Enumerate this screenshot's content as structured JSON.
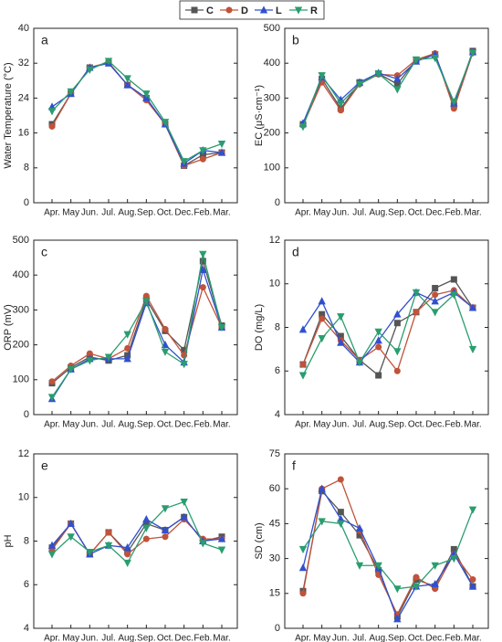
{
  "chart_data": [
    {
      "type": "line",
      "label": "a",
      "y_label": "Water Temperature (°C)",
      "categories": [
        "Apr.",
        "May",
        "Jun.",
        "Jul.",
        "Aug.",
        "Sep.",
        "Oct.",
        "Dec.",
        "Feb.",
        "Mar."
      ],
      "ylim": [
        0,
        40
      ],
      "yticks": [
        0,
        8,
        16,
        24,
        32,
        40
      ],
      "series": [
        {
          "name": "C",
          "color": "#555555",
          "marker": "square",
          "values": [
            18,
            25,
            31,
            32,
            27,
            24,
            18,
            8.5,
            11,
            11.5
          ]
        },
        {
          "name": "D",
          "color": "#c0533a",
          "marker": "circle",
          "values": [
            17.5,
            25,
            31,
            32.2,
            27,
            23.5,
            18,
            8.5,
            10,
            11.5
          ]
        },
        {
          "name": "L",
          "color": "#3050d0",
          "marker": "triangle-up",
          "values": [
            22,
            25,
            31,
            32,
            27,
            24,
            18,
            9,
            12,
            11.5
          ]
        },
        {
          "name": "R",
          "color": "#2a9d6f",
          "marker": "triangle-down",
          "values": [
            21,
            25.5,
            30.5,
            32.5,
            28.5,
            25,
            18.5,
            9.5,
            12,
            13.5
          ]
        }
      ]
    },
    {
      "type": "line",
      "label": "b",
      "y_label": "EC (μS·cm⁻¹)",
      "categories": [
        "Apr.",
        "May",
        "Jun.",
        "Jul.",
        "Aug.",
        "Sep.",
        "Oct.",
        "Dec.",
        "Feb.",
        "Mar."
      ],
      "ylim": [
        0,
        500
      ],
      "yticks": [
        0,
        100,
        200,
        300,
        400,
        500
      ],
      "series": [
        {
          "name": "C",
          "color": "#555555",
          "marker": "square",
          "values": [
            225,
            355,
            270,
            345,
            370,
            340,
            410,
            425,
            280,
            435
          ]
        },
        {
          "name": "D",
          "color": "#c0533a",
          "marker": "circle",
          "values": [
            222,
            345,
            265,
            340,
            368,
            365,
            410,
            428,
            270,
            430
          ]
        },
        {
          "name": "L",
          "color": "#3050d0",
          "marker": "triangle-up",
          "values": [
            228,
            360,
            295,
            345,
            372,
            355,
            405,
            425,
            285,
            432
          ]
        },
        {
          "name": "R",
          "color": "#2a9d6f",
          "marker": "triangle-down",
          "values": [
            218,
            365,
            285,
            340,
            370,
            325,
            410,
            415,
            290,
            430
          ]
        }
      ]
    },
    {
      "type": "line",
      "label": "c",
      "y_label": "ORP (mV)",
      "categories": [
        "Apr.",
        "May",
        "Jun.",
        "Jul.",
        "Aug.",
        "Sep.",
        "Oct.",
        "Dec.",
        "Feb.",
        "Mar."
      ],
      "ylim": [
        0,
        500
      ],
      "yticks": [
        0,
        100,
        200,
        300,
        400,
        500
      ],
      "series": [
        {
          "name": "C",
          "color": "#555555",
          "marker": "square",
          "values": [
            90,
            135,
            165,
            155,
            170,
            330,
            240,
            185,
            440,
            255
          ]
        },
        {
          "name": "D",
          "color": "#c0533a",
          "marker": "circle",
          "values": [
            95,
            140,
            175,
            160,
            190,
            340,
            245,
            170,
            365,
            250
          ]
        },
        {
          "name": "L",
          "color": "#3050d0",
          "marker": "triangle-up",
          "values": [
            45,
            130,
            160,
            160,
            160,
            320,
            200,
            150,
            415,
            250
          ]
        },
        {
          "name": "R",
          "color": "#2a9d6f",
          "marker": "triangle-down",
          "values": [
            50,
            130,
            155,
            165,
            230,
            325,
            180,
            145,
            460,
            250
          ]
        }
      ]
    },
    {
      "type": "line",
      "label": "d",
      "y_label": "DO (mg/L)",
      "categories": [
        "Apr.",
        "May",
        "Jun.",
        "Jul.",
        "Aug.",
        "Sep.",
        "Oct.",
        "Dec.",
        "Feb.",
        "Mar."
      ],
      "ylim": [
        4,
        12
      ],
      "yticks": [
        4,
        6,
        8,
        10,
        12
      ],
      "series": [
        {
          "name": "C",
          "color": "#555555",
          "marker": "square",
          "values": [
            6.3,
            8.6,
            7.6,
            6.5,
            5.8,
            8.2,
            8.7,
            9.8,
            10.2,
            8.9
          ]
        },
        {
          "name": "D",
          "color": "#c0533a",
          "marker": "circle",
          "values": [
            6.3,
            8.4,
            7.4,
            6.5,
            7.1,
            6.0,
            8.7,
            9.5,
            9.7,
            8.9
          ]
        },
        {
          "name": "L",
          "color": "#3050d0",
          "marker": "triangle-up",
          "values": [
            7.9,
            9.2,
            7.3,
            6.4,
            7.4,
            8.6,
            9.6,
            9.2,
            9.6,
            8.9
          ]
        },
        {
          "name": "R",
          "color": "#2a9d6f",
          "marker": "triangle-down",
          "values": [
            5.8,
            7.5,
            8.5,
            6.4,
            7.8,
            6.9,
            9.6,
            8.7,
            9.5,
            7.0
          ]
        }
      ]
    },
    {
      "type": "line",
      "label": "e",
      "y_label": "pH",
      "categories": [
        "Apr.",
        "May",
        "Jun.",
        "Jul.",
        "Aug.",
        "Sep.",
        "Oct.",
        "Dec.",
        "Feb.",
        "Mar."
      ],
      "ylim": [
        4,
        12
      ],
      "yticks": [
        4,
        6,
        8,
        10,
        12
      ],
      "series": [
        {
          "name": "C",
          "color": "#555555",
          "marker": "square",
          "values": [
            7.7,
            8.8,
            7.4,
            8.4,
            7.5,
            8.8,
            8.5,
            9.1,
            8.0,
            8.2
          ]
        },
        {
          "name": "D",
          "color": "#c0533a",
          "marker": "circle",
          "values": [
            7.6,
            8.8,
            7.4,
            8.4,
            7.4,
            8.1,
            8.2,
            9.0,
            8.1,
            8.1
          ]
        },
        {
          "name": "L",
          "color": "#3050d0",
          "marker": "triangle-up",
          "values": [
            7.8,
            8.8,
            7.4,
            7.8,
            7.7,
            9.0,
            8.5,
            9.1,
            8.0,
            8.1
          ]
        },
        {
          "name": "R",
          "color": "#2a9d6f",
          "marker": "triangle-down",
          "values": [
            7.4,
            8.2,
            7.5,
            7.8,
            7.0,
            8.6,
            9.5,
            9.8,
            7.9,
            7.6
          ]
        }
      ]
    },
    {
      "type": "line",
      "label": "f",
      "y_label": "SD (cm)",
      "categories": [
        "Apr.",
        "May",
        "Jun.",
        "Jul.",
        "Aug.",
        "Sep.",
        "Oct.",
        "Dec.",
        "Feb.",
        "Mar."
      ],
      "ylim": [
        0,
        75
      ],
      "yticks": [
        0,
        15,
        30,
        45,
        60,
        75
      ],
      "series": [
        {
          "name": "C",
          "color": "#555555",
          "marker": "square",
          "values": [
            16,
            59,
            50,
            40,
            25,
            5,
            21,
            18,
            34,
            18
          ]
        },
        {
          "name": "D",
          "color": "#c0533a",
          "marker": "circle",
          "values": [
            15,
            60,
            64,
            42,
            23,
            6,
            22,
            17,
            32,
            21
          ]
        },
        {
          "name": "L",
          "color": "#3050d0",
          "marker": "triangle-up",
          "values": [
            26,
            60,
            47,
            43,
            26,
            4,
            18,
            19,
            32,
            18
          ]
        },
        {
          "name": "R",
          "color": "#2a9d6f",
          "marker": "triangle-down",
          "values": [
            34,
            46,
            45,
            27,
            27,
            17,
            18,
            27,
            30,
            51
          ]
        }
      ]
    }
  ]
}
